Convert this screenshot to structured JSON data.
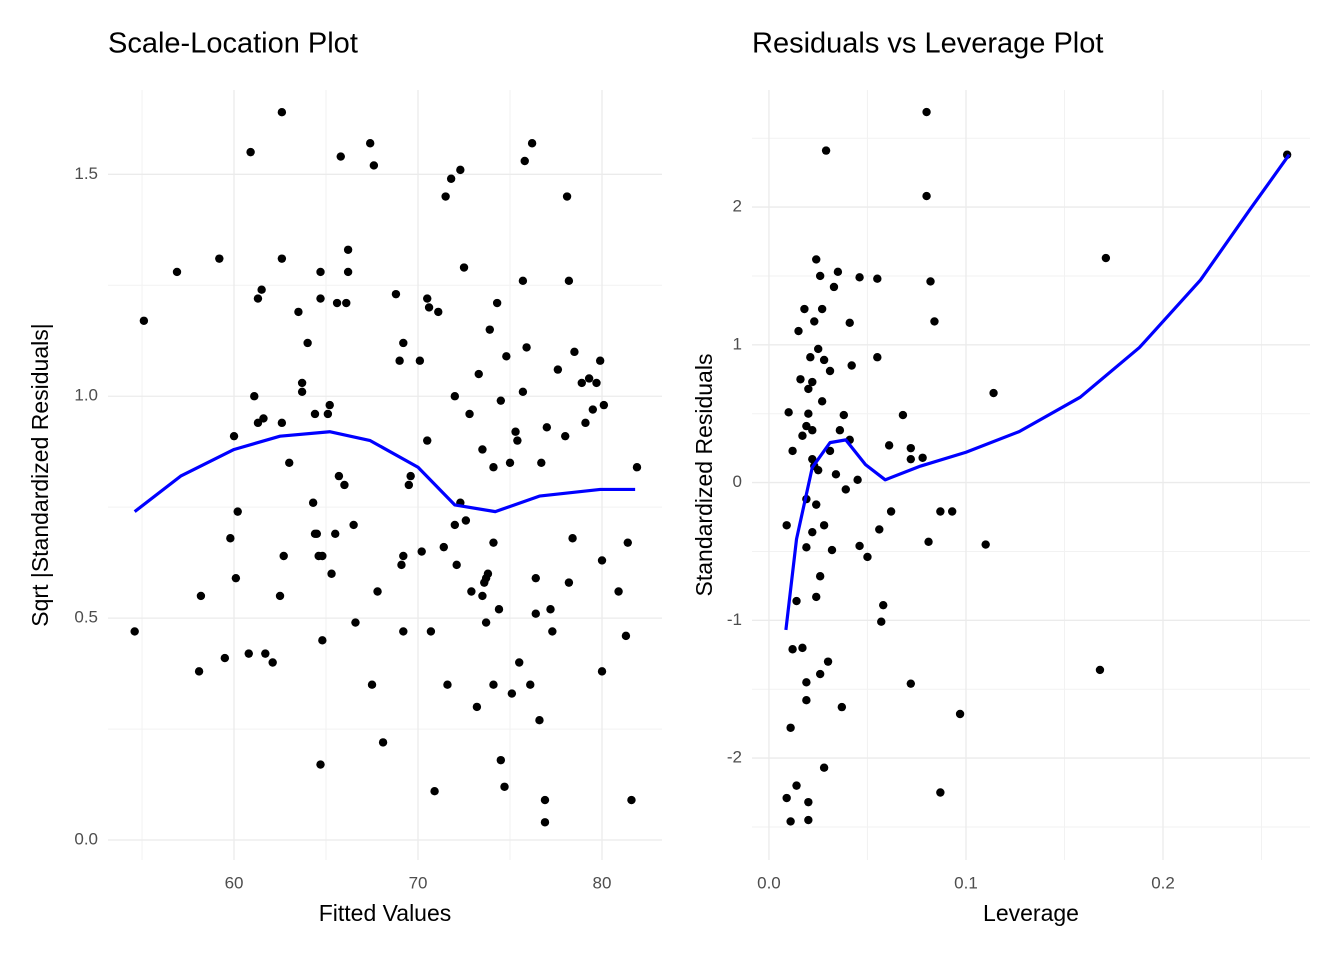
{
  "chart_data": [
    {
      "type": "scatter",
      "title": "Scale-Location Plot",
      "x_label": "Fitted Values",
      "y_label": "Sqrt |Standardized Residuals|",
      "color": "#000000",
      "grid": true,
      "xlim": [
        53.15,
        83.26
      ],
      "ylim": [
        -0.045,
        1.69
      ],
      "xticks": [
        60,
        70,
        80
      ],
      "yticks": [
        {
          "value": 0,
          "label": "0.0"
        },
        0.5,
        {
          "value": 1,
          "label": "1.0"
        },
        1.5
      ],
      "xminor": [
        55,
        65,
        75
      ],
      "yminor": [
        0.25,
        0.75,
        1.25
      ],
      "x": [
        54.6,
        55.1,
        56.9,
        58.2,
        58.1,
        59.2,
        59.5,
        59.8,
        60.0,
        60.1,
        60.2,
        60.8,
        60.9,
        61.1,
        61.3,
        61.5,
        61.3,
        61.6,
        61.7,
        62.1,
        62.5,
        62.6,
        62.6,
        62.7,
        62.6,
        63.0,
        63.5,
        63.7,
        63.7,
        64.0,
        64.4,
        64.3,
        64.4,
        64.5,
        64.6,
        64.7,
        64.7,
        64.7,
        64.8,
        64.8,
        65.1,
        65.2,
        65.3,
        65.5,
        65.6,
        65.8,
        65.7,
        66.0,
        66.1,
        66.2,
        66.2,
        66.5,
        66.6,
        67.4,
        67.6,
        67.5,
        67.8,
        68.1,
        68.8,
        69.0,
        69.2,
        69.2,
        69.1,
        69.2,
        69.5,
        69.6,
        70.1,
        70.2,
        70.5,
        70.6,
        70.5,
        70.7,
        70.9,
        71.1,
        71.4,
        71.5,
        71.6,
        71.8,
        72.0,
        72.1,
        72.3,
        72.3,
        72.0,
        72.5,
        72.6,
        72.8,
        72.9,
        73.2,
        73.3,
        73.5,
        73.5,
        73.6,
        73.7,
        73.8,
        73.7,
        73.9,
        74.1,
        74.1,
        74.1,
        74.3,
        74.4,
        74.5,
        74.5,
        74.7,
        74.8,
        75.0,
        75.1,
        75.3,
        75.4,
        75.5,
        75.7,
        75.7,
        75.8,
        75.9,
        76.1,
        76.2,
        76.4,
        76.4,
        76.6,
        76.7,
        76.9,
        76.9,
        77.0,
        77.2,
        77.3,
        77.6,
        78.0,
        78.1,
        78.2,
        78.2,
        78.4,
        78.5,
        78.9,
        79.1,
        79.3,
        79.5,
        79.7,
        79.9,
        80.0,
        80.0,
        80.1,
        80.9,
        81.3,
        81.4,
        81.6,
        81.9
      ],
      "y": [
        0.47,
        1.17,
        1.28,
        0.55,
        0.38,
        1.31,
        0.41,
        0.68,
        0.91,
        0.59,
        0.74,
        0.42,
        1.55,
        1.0,
        1.22,
        1.24,
        0.94,
        0.95,
        0.42,
        0.4,
        0.55,
        1.64,
        1.31,
        0.64,
        0.94,
        0.85,
        1.19,
        1.03,
        1.01,
        1.12,
        0.96,
        0.76,
        0.69,
        0.69,
        0.64,
        1.28,
        1.22,
        0.17,
        0.45,
        0.64,
        0.96,
        0.98,
        0.6,
        0.69,
        1.21,
        1.54,
        0.82,
        0.8,
        1.21,
        1.33,
        1.28,
        0.71,
        0.49,
        1.57,
        1.52,
        0.35,
        0.56,
        0.22,
        1.23,
        1.08,
        1.12,
        0.64,
        0.62,
        0.47,
        0.8,
        0.82,
        1.08,
        0.65,
        1.22,
        1.2,
        0.9,
        0.47,
        0.11,
        1.19,
        0.66,
        1.45,
        0.35,
        1.49,
        1.0,
        0.62,
        0.76,
        1.51,
        0.71,
        1.29,
        0.72,
        0.96,
        0.56,
        0.3,
        1.05,
        0.88,
        0.55,
        0.58,
        0.59,
        0.6,
        0.49,
        1.15,
        0.67,
        0.84,
        0.35,
        1.21,
        0.52,
        0.99,
        0.18,
        0.12,
        1.09,
        0.85,
        0.33,
        0.92,
        0.9,
        0.4,
        1.26,
        1.01,
        1.53,
        1.11,
        0.35,
        1.57,
        0.59,
        0.51,
        0.27,
        0.85,
        0.09,
        0.04,
        0.93,
        0.52,
        0.47,
        1.06,
        0.91,
        1.45,
        0.58,
        1.26,
        0.68,
        1.1,
        1.03,
        0.94,
        1.04,
        0.97,
        1.03,
        1.08,
        0.63,
        0.38,
        0.98,
        0.56,
        0.46,
        0.67,
        0.09,
        0.84
      ],
      "smooth": {
        "color": "#0000ff",
        "x": [
          54.6,
          57.1,
          60,
          62.5,
          65.2,
          67.4,
          70,
          72,
          74.2,
          76.6,
          79.9,
          81.8
        ],
        "y": [
          0.74,
          0.82,
          0.88,
          0.91,
          0.92,
          0.9,
          0.84,
          0.755,
          0.74,
          0.775,
          0.79,
          0.79
        ]
      }
    },
    {
      "type": "scatter",
      "title": "Residuals vs Leverage Plot",
      "x_label": "Leverage",
      "y_label": "Standardized Residuals",
      "color": "#000000",
      "grid": true,
      "xlim": [
        -0.0086,
        0.2746
      ],
      "ylim": [
        -2.74,
        2.85
      ],
      "xticks": [
        {
          "value": 0,
          "label": "0.0"
        },
        0.1,
        0.2
      ],
      "yticks": [
        -2,
        -1,
        0,
        1,
        2
      ],
      "xminor": [
        0.05,
        0.15,
        0.25
      ],
      "yminor": [
        -2.5,
        -1.5,
        -0.5,
        0.5,
        1.5,
        2.5
      ],
      "x": [
        0.009,
        0.011,
        0.009,
        0.011,
        0.012,
        0.014,
        0.014,
        0.01,
        0.012,
        0.015,
        0.016,
        0.017,
        0.017,
        0.018,
        0.019,
        0.019,
        0.019,
        0.02,
        0.02,
        0.019,
        0.021,
        0.022,
        0.022,
        0.023,
        0.024,
        0.024,
        0.025,
        0.026,
        0.026,
        0.026,
        0.027,
        0.027,
        0.028,
        0.028,
        0.029,
        0.03,
        0.031,
        0.032,
        0.033,
        0.034,
        0.035,
        0.036,
        0.037,
        0.039,
        0.041,
        0.042,
        0.045,
        0.046,
        0.046,
        0.05,
        0.055,
        0.055,
        0.056,
        0.057,
        0.058,
        0.061,
        0.062,
        0.068,
        0.072,
        0.072,
        0.072,
        0.078,
        0.08,
        0.08,
        0.081,
        0.082,
        0.084,
        0.087,
        0.087,
        0.093,
        0.097,
        0.11,
        0.114,
        0.168,
        0.171,
        0.263,
        0.02,
        0.02,
        0.022,
        0.023,
        0.024,
        0.022,
        0.028,
        0.025,
        0.019,
        0.031,
        0.038,
        0.041
      ],
      "y": [
        -0.31,
        -1.78,
        -2.29,
        -2.46,
        -1.21,
        -0.86,
        -2.2,
        0.51,
        0.23,
        1.1,
        0.75,
        -1.2,
        0.34,
        1.26,
        -0.12,
        -0.47,
        -1.45,
        -2.32,
        -2.45,
        -1.58,
        0.91,
        0.73,
        -0.36,
        1.17,
        1.62,
        -0.83,
        0.09,
        -0.68,
        1.5,
        -1.39,
        1.26,
        0.59,
        -2.07,
        0.89,
        2.41,
        -1.3,
        0.81,
        -0.49,
        1.42,
        0.06,
        1.53,
        0.38,
        -1.63,
        -0.05,
        1.16,
        0.85,
        0.02,
        1.49,
        -0.46,
        -0.54,
        1.48,
        0.91,
        -0.34,
        -1.01,
        -0.89,
        0.27,
        -0.21,
        0.49,
        -1.46,
        0.25,
        0.17,
        0.18,
        2.69,
        2.08,
        -0.43,
        1.46,
        1.17,
        -2.25,
        -0.21,
        -0.21,
        -1.68,
        -0.45,
        0.65,
        -1.36,
        1.63,
        2.38,
        0.68,
        0.5,
        0.38,
        0.12,
        -0.16,
        0.17,
        -0.31,
        0.97,
        0.41,
        0.23,
        0.49,
        0.31
      ],
      "smooth": {
        "color": "#0000ff",
        "x": [
          0.0086,
          0.014,
          0.022,
          0.031,
          0.039,
          0.049,
          0.059,
          0.077,
          0.1,
          0.127,
          0.158,
          0.188,
          0.219,
          0.244,
          0.264
        ],
        "y": [
          -1.07,
          -0.41,
          0.11,
          0.29,
          0.31,
          0.13,
          0.02,
          0.12,
          0.22,
          0.37,
          0.62,
          0.98,
          1.47,
          1.98,
          2.38
        ]
      }
    }
  ]
}
